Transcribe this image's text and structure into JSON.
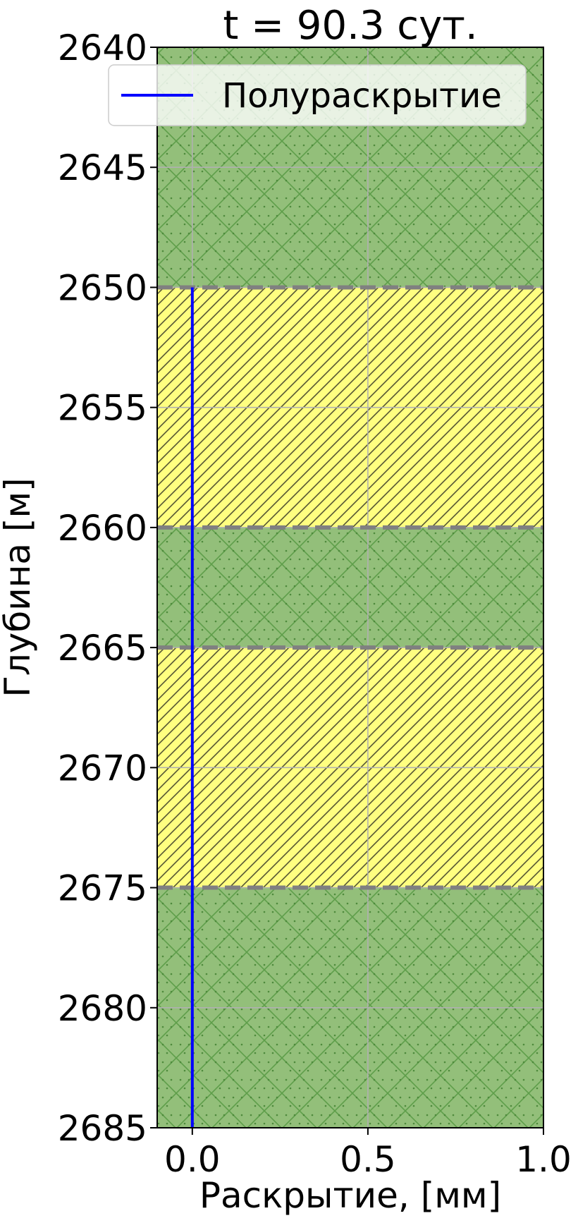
{
  "chart_data": {
    "type": "line",
    "title": "t = 90.3 сут.",
    "xlabel": "Раскрытие, [мм]",
    "ylabel": "Глубина [м]",
    "xlim": [
      -0.1,
      1.0
    ],
    "ylim": [
      2640,
      2685
    ],
    "y_inverted": true,
    "grid": true,
    "x_ticks": [
      0.0,
      0.5,
      1.0
    ],
    "x_tick_labels": [
      "0.0",
      "0.5",
      "1.0"
    ],
    "y_ticks": [
      2640,
      2645,
      2650,
      2655,
      2660,
      2665,
      2670,
      2675,
      2680,
      2685
    ],
    "y_tick_labels": [
      "2640",
      "2645",
      "2650",
      "2655",
      "2660",
      "2665",
      "2670",
      "2675",
      "2680",
      "2685"
    ],
    "layers": [
      {
        "top": 2640,
        "bottom": 2650,
        "fill": "#93bf7a",
        "hatch": "crosshatch-dots"
      },
      {
        "top": 2650,
        "bottom": 2660,
        "fill": "#ffff80",
        "hatch": "diagonal"
      },
      {
        "top": 2660,
        "bottom": 2665,
        "fill": "#93bf7a",
        "hatch": "crosshatch-dots"
      },
      {
        "top": 2665,
        "bottom": 2675,
        "fill": "#ffff80",
        "hatch": "diagonal"
      },
      {
        "top": 2675,
        "bottom": 2685,
        "fill": "#93bf7a",
        "hatch": "crosshatch-dots"
      }
    ],
    "boundaries": [
      2650,
      2660,
      2665,
      2675
    ],
    "series": [
      {
        "name": "Полураскрытие",
        "color": "#0000ff",
        "x": [
          0.0,
          0.0
        ],
        "y": [
          2650,
          2685
        ]
      }
    ],
    "legend": {
      "position": "top",
      "entries": [
        "Полураскрытие"
      ]
    }
  }
}
